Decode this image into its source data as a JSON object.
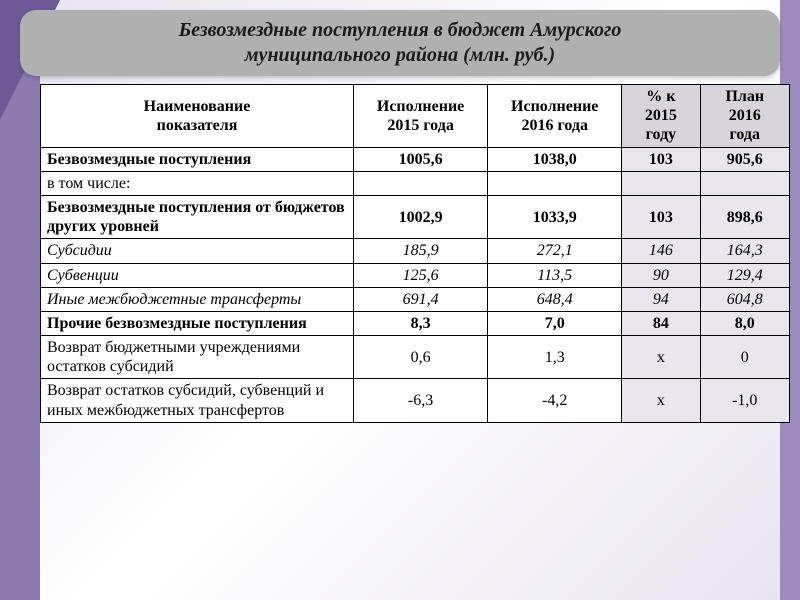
{
  "title_line1": "Безвозмездные поступления в бюджет Амурского",
  "title_line2": "муниципального района (млн. руб.)",
  "columns": {
    "c1a": "Наименование",
    "c1b": "показателя",
    "c2a": "Исполнение",
    "c2b": "2015 года",
    "c3a": "Исполнение",
    "c3b": "2016 года",
    "c4a": "% к",
    "c4b": "2015",
    "c4c": "году",
    "c5a": "План",
    "c5b": "2016",
    "c5c": "года"
  },
  "rows": [
    {
      "name": "Безвозмездные поступления",
      "v1": "1005,6",
      "v2": "1038,0",
      "v3": "103",
      "v4": "905,6",
      "bold": true
    },
    {
      "name": "в том числе:",
      "v1": "",
      "v2": "",
      "v3": "",
      "v4": ""
    },
    {
      "name": "Безвозмездные поступления от бюджетов других уровней",
      "v1": "1002,9",
      "v2": "1033,9",
      "v3": "103",
      "v4": "898,6",
      "bold": true
    },
    {
      "name": "Субсидии",
      "v1": "185,9",
      "v2": "272,1",
      "v3": "146",
      "v4": "164,3",
      "italic": true
    },
    {
      "name": "Субвенции",
      "v1": "125,6",
      "v2": "113,5",
      "v3": "90",
      "v4": "129,4",
      "italic": true
    },
    {
      "name": "Иные межбюджетные трансферты",
      "v1": "691,4",
      "v2": "648,4",
      "v3": "94",
      "v4": "604,8",
      "italic": true
    },
    {
      "name": "Прочие безвозмездные поступления",
      "v1": "8,3",
      "v2": "7,0",
      "v3": "84",
      "v4": "8,0",
      "bold": true
    },
    {
      "name": "Возврат бюджетными учреждениями остатков субсидий",
      "v1": "0,6",
      "v2": "1,3",
      "v3": "х",
      "v4": "0"
    },
    {
      "name": "Возврат остатков субсидий, субвенций и иных межбюджетных трансфертов",
      "v1": "-6,3",
      "v2": "-4,2",
      "v3": "х",
      "v4": "-1,0"
    }
  ],
  "style": {
    "background_accent": "#9b8bbf",
    "title_bg": "#b0b0b0",
    "border_color": "#000000",
    "shade_header": "#d8d4dc",
    "shade_cell": "#eae6ee",
    "font_family": "Times New Roman",
    "base_fontsize": 16,
    "title_fontsize": 20
  }
}
